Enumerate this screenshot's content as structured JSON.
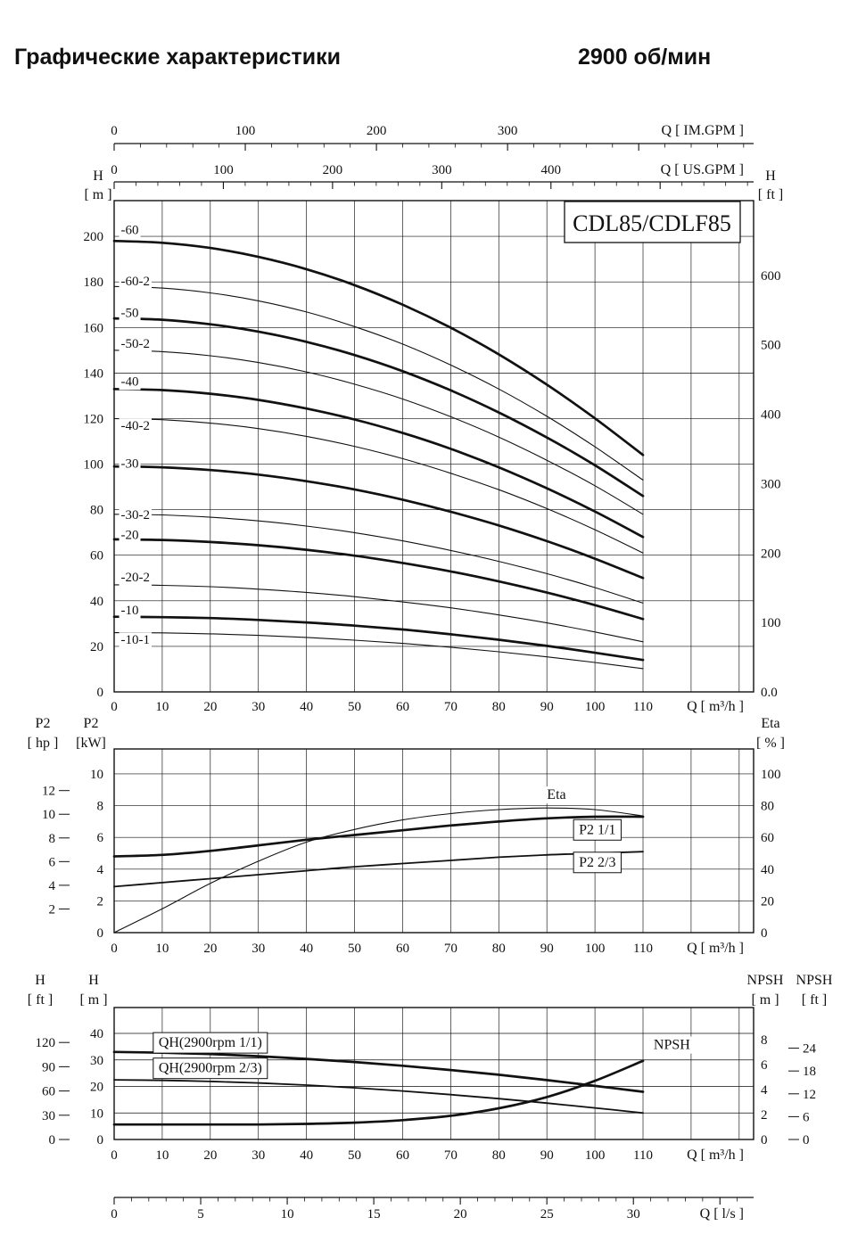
{
  "header": {
    "title_left": "Графические характеристики",
    "title_right": "2900 об/мин"
  },
  "colors": {
    "ink": "#111111",
    "background": "#ffffff"
  },
  "chart_data": [
    {
      "id": "qh-main",
      "type": "line",
      "title": "CDL85/CDLF85",
      "x_label": "Q [ m³/h ]",
      "x_unit": "m³/h",
      "x_range": [
        0,
        133
      ],
      "grid": true,
      "x": [
        0,
        10,
        20,
        30,
        40,
        50,
        60,
        70,
        80,
        90,
        100,
        110
      ],
      "axis_top_outer": {
        "label": "Q [ IM.GPM ]",
        "ticks": [
          0,
          100,
          200,
          300
        ],
        "minor_step": 20,
        "m3h_per_unit": 0.27276
      },
      "axis_top_inner": {
        "label": "Q [ US.GPM ]",
        "ticks": [
          0,
          100,
          200,
          300,
          400
        ],
        "minor_step": 20,
        "m3h_per_unit": 0.22712
      },
      "axis_left": {
        "title": [
          "H",
          "[ m ]"
        ],
        "unit": "m",
        "max": 215.7,
        "ticks": [
          0,
          20,
          40,
          60,
          80,
          100,
          120,
          140,
          160,
          180,
          200
        ]
      },
      "axis_right": {
        "title": [
          "H",
          "[ ft ]"
        ],
        "unit": "ft",
        "ticks": [
          100,
          200,
          300,
          400,
          500,
          600
        ],
        "zero_label": "0.0",
        "m_per_unit": 0.3048
      },
      "series": [
        {
          "name": "-60",
          "weight": "thick",
          "label_at": [
            1.4,
            203
          ],
          "values": [
            198,
            197.2,
            194.9,
            191,
            185.6,
            178.6,
            170,
            159.9,
            148.2,
            134.9,
            120.1,
            104
          ]
        },
        {
          "name": "-60-2",
          "weight": "thin",
          "label_at": [
            1.4,
            180.5
          ],
          "values": [
            178,
            177.3,
            175.2,
            171.7,
            166.8,
            160.4,
            152.7,
            143.5,
            133,
            121,
            107.6,
            93
          ]
        },
        {
          "name": "-50",
          "weight": "thick",
          "label_at": [
            1.4,
            166.5
          ],
          "values": [
            164,
            163.4,
            161.4,
            158.2,
            153.7,
            147.9,
            140.8,
            132.4,
            122.7,
            111.7,
            99.5,
            86
          ]
        },
        {
          "name": "-50-2",
          "weight": "thin",
          "label_at": [
            1.4,
            153
          ],
          "values": [
            150,
            149.4,
            147.6,
            144.6,
            140.5,
            135.1,
            128.6,
            120.8,
            111.9,
            101.7,
            90.5,
            78
          ]
        },
        {
          "name": "-40",
          "weight": "thick",
          "label_at": [
            1.4,
            136.5
          ],
          "values": [
            133,
            132.5,
            130.9,
            128.2,
            124.4,
            119.6,
            113.7,
            106.7,
            98.6,
            89.4,
            79.2,
            68
          ]
        },
        {
          "name": "-40-2",
          "weight": "thin",
          "label_at": [
            1.4,
            117
          ],
          "values": [
            120,
            119.5,
            118,
            115.6,
            112.2,
            107.8,
            102.4,
            96,
            88.8,
            80.5,
            71.2,
            61
          ]
        },
        {
          "name": "-30",
          "weight": "thick",
          "label_at": [
            1.4,
            100.5
          ],
          "values": [
            99,
            98.6,
            97.4,
            95.4,
            92.5,
            88.9,
            84.4,
            79.1,
            73.1,
            66.2,
            58.5,
            50
          ]
        },
        {
          "name": "-30-2",
          "weight": "thin",
          "label_at": [
            1.4,
            78
          ],
          "values": [
            78,
            77.7,
            76.7,
            75.1,
            72.8,
            69.9,
            66.3,
            62.1,
            57.3,
            51.9,
            45.8,
            39
          ]
        },
        {
          "name": "-20",
          "weight": "thick",
          "label_at": [
            1.4,
            69
          ],
          "values": [
            67,
            66.7,
            65.8,
            64.4,
            62.4,
            59.8,
            56.6,
            52.9,
            48.5,
            43.6,
            38.1,
            32
          ]
        },
        {
          "name": "-20-2",
          "weight": "thin",
          "label_at": [
            1.4,
            50.5
          ],
          "values": [
            47,
            46.8,
            46.2,
            45.1,
            43.7,
            41.8,
            39.5,
            36.9,
            33.8,
            30.3,
            26.3,
            22
          ]
        },
        {
          "name": "-10",
          "weight": "thick",
          "label_at": [
            1.4,
            36
          ],
          "values": [
            33,
            32.8,
            32.4,
            31.6,
            30.5,
            29.1,
            27.4,
            25.3,
            22.9,
            20.2,
            17.2,
            14
          ]
        },
        {
          "name": "-10-1",
          "weight": "thin",
          "label_at": [
            1.4,
            23
          ],
          "values": [
            26,
            25.9,
            25.5,
            24.8,
            23.9,
            22.7,
            21.3,
            19.6,
            17.6,
            15.4,
            12.9,
            10.2
          ]
        }
      ]
    },
    {
      "id": "power-eta",
      "type": "line",
      "x_label": "Q [ m³/h ]",
      "x": [
        0,
        10,
        20,
        30,
        40,
        50,
        60,
        70,
        80,
        90,
        100,
        110
      ],
      "axis_left_outer": {
        "title": [
          "P2",
          "[ hp ]"
        ],
        "ticks": [
          2,
          4,
          6,
          8,
          10,
          12
        ],
        "kw_per_unit": 0.7457
      },
      "axis_left_inner": {
        "title": [
          "P2",
          "[kW]"
        ],
        "unit": "kW",
        "max": 11.57,
        "ticks": [
          0,
          2,
          4,
          6,
          8,
          10
        ]
      },
      "axis_right": {
        "title": [
          "Eta",
          "[ % ]"
        ],
        "unit": "%",
        "ticks": [
          0,
          20,
          40,
          60,
          80,
          100
        ],
        "kw_per_unit": 0.1
      },
      "series": [
        {
          "name": "Eta",
          "axis": "right",
          "weight": "thin",
          "boxed": false,
          "label_at": [
            92,
            87
          ],
          "values": [
            0,
            15,
            31,
            45,
            57,
            65,
            71,
            75,
            77.5,
            78.5,
            77.5,
            73.5
          ]
        },
        {
          "name": "P2 1/1",
          "axis": "left",
          "weight": "thick",
          "boxed": true,
          "label_at": [
            100.5,
            6.5
          ],
          "values": [
            4.8,
            4.9,
            5.15,
            5.5,
            5.85,
            6.15,
            6.45,
            6.75,
            7,
            7.2,
            7.3,
            7.3
          ]
        },
        {
          "name": "P2 2/3",
          "axis": "left",
          "weight": "medium",
          "boxed": true,
          "label_at": [
            100.5,
            4.45
          ],
          "values": [
            2.9,
            3.15,
            3.4,
            3.65,
            3.9,
            4.15,
            4.35,
            4.55,
            4.75,
            4.9,
            5,
            5.1
          ]
        }
      ]
    },
    {
      "id": "qh-single-npsh",
      "type": "line",
      "x_label": "Q [ m³/h ]",
      "x": [
        0,
        10,
        20,
        30,
        40,
        50,
        60,
        70,
        80,
        90,
        100,
        110
      ],
      "axis_left_outer": {
        "title": [
          "H",
          "[ ft ]"
        ],
        "ticks": [
          0,
          30,
          60,
          90,
          120
        ],
        "m_per_unit": 0.3048
      },
      "axis_left_inner": {
        "title": [
          "H",
          "[ m ]"
        ],
        "unit": "m",
        "max": 49.75,
        "ticks": [
          0,
          10,
          20,
          30,
          40
        ]
      },
      "axis_right_inner": {
        "title": [
          "NPSH",
          "[ m ]"
        ],
        "unit": "m",
        "max": 10.57,
        "ticks": [
          0,
          2,
          4,
          6,
          8
        ]
      },
      "axis_right_outer": {
        "title": [
          "NPSH",
          "[ ft ]"
        ],
        "ticks": [
          0,
          6,
          12,
          18,
          24
        ],
        "m_per_unit": 0.3048
      },
      "axis_bottom_extra": {
        "label": "Q [ l/s ]",
        "ticks": [
          0,
          5,
          10,
          15,
          20,
          25,
          30
        ],
        "minor_step": 1,
        "m3h_per_unit": 3.6
      },
      "series": [
        {
          "name": "QH(2900rpm 1/1)",
          "axis": "left",
          "weight": "thick",
          "boxed": true,
          "label_at": [
            20,
            36.6
          ],
          "values": [
            33,
            32.7,
            32.2,
            31.4,
            30.4,
            29.2,
            27.8,
            26.2,
            24.4,
            22.4,
            20.2,
            18
          ]
        },
        {
          "name": "QH(2900rpm 2/3)",
          "axis": "left",
          "weight": "medium",
          "boxed": true,
          "label_at": [
            20,
            27
          ],
          "values": [
            22.5,
            22.3,
            21.9,
            21.3,
            20.5,
            19.5,
            18.3,
            16.9,
            15.4,
            13.7,
            11.9,
            10
          ]
        },
        {
          "name": "NPSH",
          "axis": "npsh",
          "weight": "thick",
          "boxed": false,
          "label_at": [
            116,
            7.6
          ],
          "values": [
            1.2,
            1.2,
            1.2,
            1.2,
            1.25,
            1.35,
            1.55,
            1.9,
            2.5,
            3.4,
            4.7,
            6.3
          ]
        }
      ]
    }
  ]
}
